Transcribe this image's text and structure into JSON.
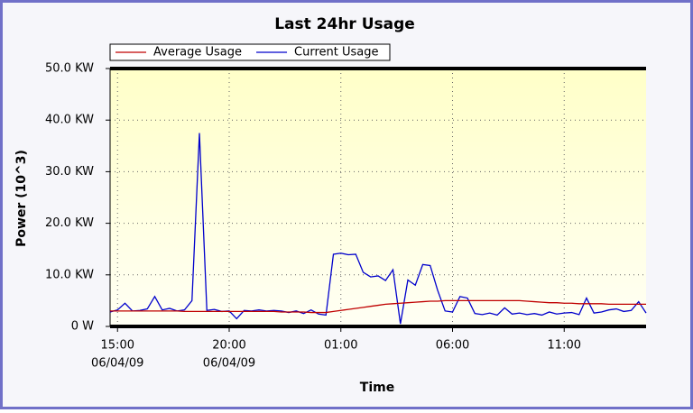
{
  "chart_data": {
    "type": "line",
    "title": "Last 24hr Usage",
    "xlabel": "Time",
    "ylabel": "Power (10^3)",
    "x": [
      "14:40",
      "15:00",
      "15:20",
      "15:40",
      "16:00",
      "16:20",
      "16:40",
      "17:00",
      "17:20",
      "17:40",
      "18:00",
      "18:20",
      "18:40",
      "19:00",
      "19:20",
      "19:40",
      "20:00",
      "20:20",
      "20:40",
      "21:00",
      "21:20",
      "21:40",
      "22:00",
      "22:20",
      "22:40",
      "23:00",
      "23:20",
      "23:40",
      "00:00",
      "00:20",
      "00:40",
      "01:00",
      "01:20",
      "01:40",
      "02:00",
      "02:20",
      "02:40",
      "03:00",
      "03:20",
      "03:40",
      "04:00",
      "04:20",
      "04:40",
      "05:00",
      "05:20",
      "05:40",
      "06:00",
      "06:20",
      "06:40",
      "07:00",
      "07:20",
      "07:40",
      "08:00",
      "08:20",
      "08:40",
      "09:00",
      "09:20",
      "09:40",
      "10:00",
      "10:20",
      "10:40",
      "11:00",
      "11:20",
      "11:40",
      "12:00",
      "12:20",
      "12:40",
      "13:00",
      "13:20",
      "13:40",
      "14:00",
      "14:20",
      "14:40"
    ],
    "series": [
      {
        "name": "Average Usage",
        "color": "#c00000",
        "values": [
          3.0,
          3.0,
          3.0,
          3.0,
          3.0,
          3.0,
          3.0,
          3.0,
          3.0,
          3.0,
          2.9,
          2.9,
          2.9,
          2.9,
          2.9,
          2.9,
          2.9,
          2.9,
          2.9,
          2.9,
          2.9,
          2.9,
          2.9,
          2.8,
          2.8,
          2.8,
          2.8,
          2.7,
          2.7,
          2.7,
          2.9,
          3.1,
          3.3,
          3.5,
          3.7,
          3.9,
          4.1,
          4.3,
          4.4,
          4.5,
          4.6,
          4.7,
          4.8,
          4.9,
          4.9,
          5.0,
          5.0,
          5.0,
          5.0,
          5.0,
          5.0,
          5.0,
          5.0,
          5.0,
          5.0,
          5.0,
          4.9,
          4.8,
          4.7,
          4.6,
          4.6,
          4.5,
          4.5,
          4.4,
          4.4,
          4.4,
          4.4,
          4.3,
          4.3,
          4.3,
          4.3,
          4.3,
          4.3
        ]
      },
      {
        "name": "Current Usage",
        "color": "#0000cc",
        "values": [
          2.8,
          3.2,
          4.5,
          3.0,
          3.1,
          3.4,
          5.8,
          3.2,
          3.5,
          3.0,
          3.2,
          5.0,
          37.5,
          3.1,
          3.3,
          2.9,
          3.0,
          1.5,
          3.1,
          3.0,
          3.2,
          3.0,
          3.1,
          3.0,
          2.7,
          3.0,
          2.5,
          3.2,
          2.4,
          2.2,
          14.0,
          14.2,
          13.9,
          14.0,
          10.5,
          9.6,
          9.8,
          8.9,
          11.0,
          0.5,
          9.0,
          8.0,
          12.0,
          11.8,
          7.0,
          3.0,
          2.8,
          5.8,
          5.5,
          2.5,
          2.3,
          2.6,
          2.2,
          3.6,
          2.4,
          2.6,
          2.3,
          2.5,
          2.2,
          2.8,
          2.4,
          2.6,
          2.7,
          2.3,
          5.5,
          2.6,
          2.8,
          3.2,
          3.4,
          2.9,
          3.1,
          4.8,
          2.6
        ]
      }
    ],
    "xticks": [
      "15:00",
      "20:00",
      "01:00",
      "06:00",
      "11:00"
    ],
    "xtick_dates": [
      "06/04/09",
      "06/04/09",
      null,
      null,
      null
    ],
    "ylim": [
      0,
      50
    ],
    "yticks": [
      {
        "value": 0,
        "label": "0 W"
      },
      {
        "value": 10,
        "label": "10.0 KW"
      },
      {
        "value": 20,
        "label": "20.0 KW"
      },
      {
        "value": 30,
        "label": "30.0 KW"
      },
      {
        "value": 40,
        "label": "40.0 KW"
      },
      {
        "value": 50,
        "label": "50.0 KW"
      }
    ],
    "grid": true,
    "legend": "top-left"
  }
}
